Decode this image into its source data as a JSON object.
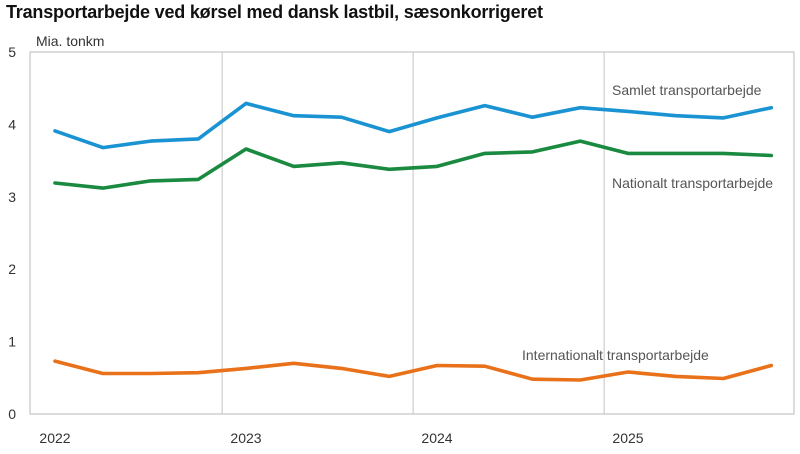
{
  "chart_data": {
    "type": "line",
    "title": "Transportarbejde ved kørsel med dansk lastbil, sæsonkorrigeret",
    "ylabel": "Mia. tonkm",
    "ylim": [
      0,
      5
    ],
    "yticks": [
      "0",
      "1",
      "2",
      "3",
      "4",
      "5"
    ],
    "year_labels": [
      "2022",
      "2023",
      "2024",
      "2025"
    ],
    "x": [
      "2022K1",
      "2022K2",
      "2022K3",
      "2022K4",
      "2023K1",
      "2023K2",
      "2023K3",
      "2023K4",
      "2024K1",
      "2024K2",
      "2024K3",
      "2024K4",
      "2025K1",
      "2025K2",
      "2025K3",
      "2025K4"
    ],
    "grid": "vertical at year boundaries",
    "series": [
      {
        "name": "Samlet transportarbejde",
        "color": "#1a93d3",
        "values": [
          3.91,
          3.68,
          3.77,
          3.8,
          4.29,
          4.12,
          4.1,
          3.9,
          4.09,
          4.26,
          4.1,
          4.23,
          4.18,
          4.12,
          4.09,
          4.23
        ]
      },
      {
        "name": "Nationalt transportarbejde",
        "color": "#1a8a40",
        "values": [
          3.19,
          3.12,
          3.22,
          3.24,
          3.66,
          3.42,
          3.47,
          3.38,
          3.42,
          3.6,
          3.62,
          3.77,
          3.6,
          3.6,
          3.6,
          3.57
        ]
      },
      {
        "name": "Internationalt transportarbejde",
        "color": "#e8711a",
        "values": [
          0.73,
          0.56,
          0.56,
          0.57,
          0.63,
          0.7,
          0.63,
          0.52,
          0.67,
          0.66,
          0.48,
          0.47,
          0.58,
          0.52,
          0.49,
          0.67
        ]
      }
    ]
  }
}
